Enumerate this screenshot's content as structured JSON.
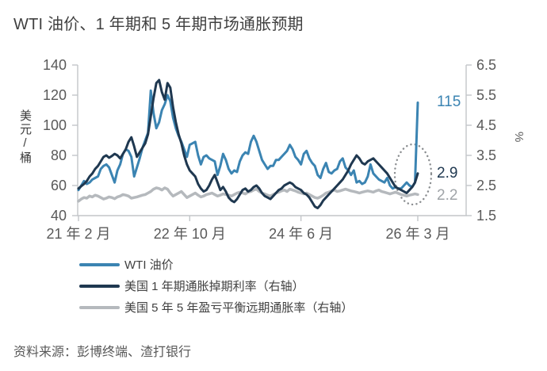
{
  "title": "WTI 油价、1 年期和 5 年期市场通胀预期",
  "source": "资料来源：彭博终端、渣打银行",
  "colors": {
    "axis_line": "#c3c6c9",
    "tick_label": "#595959",
    "title_text": "#404040",
    "highlight_ellipse": "#8a8d90"
  },
  "chart_data": {
    "type": "line",
    "title": "WTI 油价、1 年期和 5 年期市场通胀预期",
    "grid": false,
    "legend_position": "bottom-left",
    "x_axis": {
      "start_month": 0,
      "end_month": 61,
      "ticks": [
        {
          "label": "21 年 2 月",
          "month": 0
        },
        {
          "label": "22 年 10 月",
          "month": 20
        },
        {
          "label": "24 年 6 月",
          "month": 40
        },
        {
          "label": "26 年 3 月",
          "month": 61
        }
      ]
    },
    "left_axis": {
      "unit": "美元/桶",
      "lim": [
        40,
        140
      ],
      "ticks": [
        140,
        120,
        100,
        80,
        60,
        40
      ]
    },
    "right_axis": {
      "unit": "%",
      "lim": [
        1.5,
        6.5
      ],
      "ticks": [
        6.5,
        5.5,
        4.5,
        3.5,
        2.5,
        1.5
      ]
    },
    "x_step_months": 0.5,
    "draw_order": [
      2,
      0,
      1
    ],
    "series": [
      {
        "name": "WTI 油价",
        "axis": "left",
        "color": "#3b84b2",
        "stroke_width": 3,
        "end_label": "115",
        "end_label_color": "#3b84b2",
        "values": [
          57,
          60,
          63,
          61,
          62,
          64,
          65,
          66,
          71,
          73,
          74,
          72,
          67,
          62,
          70,
          74,
          81,
          84,
          83,
          79,
          66,
          72,
          78,
          85,
          90,
          95,
          123,
          108,
          98,
          102,
          110,
          114,
          120,
          116,
          105,
          98,
          93,
          89,
          84,
          79,
          87,
          88,
          89,
          80,
          74,
          79,
          80,
          78,
          77,
          76,
          67,
          73,
          81,
          77,
          71,
          68,
          70,
          69,
          76,
          80,
          82,
          81,
          89,
          93,
          89,
          83,
          77,
          74,
          71,
          73,
          73,
          77,
          77,
          79,
          81,
          83,
          87,
          84,
          79,
          77,
          74,
          81,
          83,
          78,
          75,
          73,
          67,
          65,
          71,
          75,
          69,
          68,
          70,
          71,
          76,
          78,
          72,
          70,
          67,
          70,
          62,
          63,
          61,
          62,
          66,
          74,
          68,
          66,
          64,
          63,
          62,
          65,
          60,
          58,
          59,
          58,
          58,
          60,
          62,
          60,
          59,
          62,
          115
        ]
      },
      {
        "name": "美国 1 年期通胀掉期利率（右轴）",
        "axis": "right",
        "color": "#1f3850",
        "stroke_width": 3,
        "end_label": "2.9",
        "end_label_color": "#1f3850",
        "values": [
          2.4,
          2.48,
          2.55,
          2.65,
          2.8,
          2.9,
          3.05,
          3.15,
          3.3,
          3.45,
          3.5,
          3.42,
          3.48,
          3.55,
          3.5,
          3.4,
          3.55,
          3.7,
          3.95,
          4.1,
          3.8,
          3.45,
          3.6,
          3.75,
          3.9,
          4.2,
          4.8,
          5.4,
          5.9,
          6.0,
          5.6,
          5.35,
          5.9,
          5.75,
          5.1,
          4.6,
          4.2,
          3.9,
          3.5,
          3.2,
          3.0,
          2.9,
          2.8,
          2.55,
          2.4,
          2.3,
          2.35,
          2.5,
          2.7,
          2.85,
          2.6,
          2.35,
          2.45,
          2.3,
          2.1,
          2.0,
          1.95,
          2.05,
          2.2,
          2.35,
          2.4,
          2.3,
          2.35,
          2.45,
          2.5,
          2.4,
          2.25,
          2.15,
          2.1,
          2.05,
          2.15,
          2.25,
          2.35,
          2.4,
          2.5,
          2.55,
          2.6,
          2.55,
          2.45,
          2.4,
          2.35,
          2.25,
          2.2,
          2.1,
          1.95,
          1.8,
          1.75,
          1.85,
          2.0,
          2.1,
          2.2,
          2.3,
          2.4,
          2.5,
          2.6,
          2.7,
          2.85,
          3.0,
          3.2,
          3.35,
          3.5,
          3.4,
          3.25,
          3.2,
          3.3,
          3.35,
          3.4,
          3.3,
          3.2,
          3.1,
          3.0,
          2.9,
          2.75,
          2.6,
          2.45,
          2.4,
          2.35,
          2.3,
          2.25,
          2.35,
          2.45,
          2.6,
          2.9
        ]
      },
      {
        "name": "美国 5 年 5 年盈亏平衡远期通胀率（右轴）",
        "axis": "right",
        "color": "#b5b9bd",
        "stroke_width": 3.5,
        "end_label": "2.2",
        "end_label_color": "#a0a4a8",
        "values": [
          1.98,
          2.05,
          2.1,
          2.08,
          2.15,
          2.12,
          2.18,
          2.15,
          2.1,
          2.05,
          2.08,
          2.12,
          2.1,
          2.06,
          2.12,
          2.15,
          2.2,
          2.18,
          2.15,
          2.08,
          2.1,
          2.12,
          2.15,
          2.18,
          2.2,
          2.25,
          2.3,
          2.38,
          2.42,
          2.4,
          2.35,
          2.42,
          2.38,
          2.25,
          2.15,
          2.2,
          2.25,
          2.3,
          2.2,
          2.1,
          2.15,
          2.2,
          2.25,
          2.18,
          2.12,
          2.15,
          2.2,
          2.22,
          2.25,
          2.2,
          2.15,
          2.18,
          2.22,
          2.2,
          2.18,
          2.15,
          2.2,
          2.25,
          2.28,
          2.25,
          2.22,
          2.28,
          2.3,
          2.35,
          2.38,
          2.3,
          2.25,
          2.22,
          2.18,
          2.15,
          2.2,
          2.25,
          2.28,
          2.32,
          2.35,
          2.3,
          2.38,
          2.35,
          2.32,
          2.28,
          2.25,
          2.22,
          2.25,
          2.2,
          2.15,
          2.1,
          2.08,
          2.12,
          2.18,
          2.25,
          2.28,
          2.32,
          2.35,
          2.3,
          2.32,
          2.35,
          2.38,
          2.35,
          2.32,
          2.3,
          2.28,
          2.25,
          2.28,
          2.3,
          2.32,
          2.3,
          2.28,
          2.32,
          2.35,
          2.3,
          2.28,
          2.25,
          2.22,
          2.25,
          2.28,
          2.24,
          2.2,
          2.18,
          2.15,
          2.18,
          2.2,
          2.22,
          2.2
        ]
      }
    ]
  }
}
